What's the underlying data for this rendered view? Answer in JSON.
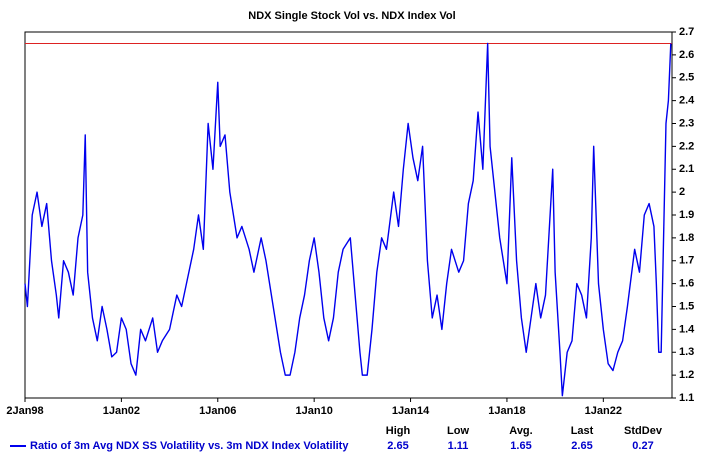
{
  "chart_data": {
    "type": "line",
    "title": "NDX Single Stock Vol vs. NDX Index Vol",
    "x": [
      1998.0,
      1998.1,
      1998.3,
      1998.5,
      1998.7,
      1998.9,
      1999.1,
      1999.3,
      1999.4,
      1999.6,
      1999.8,
      2000.0,
      2000.2,
      2000.4,
      2000.5,
      2000.6,
      2000.8,
      2001.0,
      2001.2,
      2001.4,
      2001.6,
      2001.8,
      2002.0,
      2002.2,
      2002.4,
      2002.6,
      2002.8,
      2003.0,
      2003.3,
      2003.5,
      2003.7,
      2004.0,
      2004.3,
      2004.5,
      2004.7,
      2005.0,
      2005.2,
      2005.4,
      2005.6,
      2005.8,
      2006.0,
      2006.1,
      2006.3,
      2006.5,
      2006.8,
      2007.0,
      2007.3,
      2007.5,
      2007.8,
      2008.0,
      2008.3,
      2008.6,
      2008.8,
      2009.0,
      2009.2,
      2009.4,
      2009.6,
      2009.8,
      2010.0,
      2010.2,
      2010.4,
      2010.6,
      2010.8,
      2011.0,
      2011.2,
      2011.5,
      2011.7,
      2011.9,
      2012.0,
      2012.2,
      2012.4,
      2012.6,
      2012.8,
      2013.0,
      2013.3,
      2013.5,
      2013.7,
      2013.9,
      2014.1,
      2014.3,
      2014.5,
      2014.7,
      2014.9,
      2015.1,
      2015.3,
      2015.5,
      2015.7,
      2016.0,
      2016.2,
      2016.4,
      2016.6,
      2016.8,
      2017.0,
      2017.2,
      2017.3,
      2017.5,
      2017.7,
      2018.0,
      2018.2,
      2018.4,
      2018.6,
      2018.8,
      2019.0,
      2019.2,
      2019.4,
      2019.6,
      2019.9,
      2020.0,
      2020.2,
      2020.3,
      2020.5,
      2020.7,
      2020.9,
      2021.1,
      2021.3,
      2021.5,
      2021.6,
      2021.8,
      2022.0,
      2022.2,
      2022.4,
      2022.6,
      2022.8,
      2023.0,
      2023.3,
      2023.5,
      2023.7,
      2023.9,
      2024.1,
      2024.2,
      2024.3,
      2024.4,
      2024.5,
      2024.6,
      2024.7,
      2024.8
    ],
    "series": [
      {
        "name": "Ratio of 3m Avg NDX SS Volatility vs. 3m NDX Index Volatility",
        "color": "#0000ee",
        "values": [
          1.6,
          1.5,
          1.9,
          2.0,
          1.85,
          1.95,
          1.7,
          1.55,
          1.45,
          1.7,
          1.65,
          1.55,
          1.8,
          1.9,
          2.25,
          1.65,
          1.45,
          1.35,
          1.5,
          1.4,
          1.28,
          1.3,
          1.45,
          1.4,
          1.25,
          1.2,
          1.4,
          1.35,
          1.45,
          1.3,
          1.35,
          1.4,
          1.55,
          1.5,
          1.6,
          1.75,
          1.9,
          1.75,
          2.3,
          2.1,
          2.48,
          2.2,
          2.25,
          2.0,
          1.8,
          1.85,
          1.75,
          1.65,
          1.8,
          1.7,
          1.5,
          1.3,
          1.2,
          1.2,
          1.3,
          1.45,
          1.55,
          1.7,
          1.8,
          1.65,
          1.45,
          1.35,
          1.45,
          1.65,
          1.75,
          1.8,
          1.55,
          1.3,
          1.2,
          1.2,
          1.4,
          1.65,
          1.8,
          1.75,
          2.0,
          1.85,
          2.1,
          2.3,
          2.15,
          2.05,
          2.2,
          1.7,
          1.45,
          1.55,
          1.4,
          1.6,
          1.75,
          1.65,
          1.7,
          1.95,
          2.05,
          2.35,
          2.1,
          2.65,
          2.2,
          2.0,
          1.8,
          1.6,
          2.15,
          1.7,
          1.45,
          1.3,
          1.45,
          1.6,
          1.45,
          1.55,
          2.1,
          1.65,
          1.3,
          1.11,
          1.3,
          1.35,
          1.6,
          1.55,
          1.45,
          1.8,
          2.2,
          1.6,
          1.4,
          1.25,
          1.22,
          1.3,
          1.35,
          1.5,
          1.75,
          1.65,
          1.9,
          1.95,
          1.85,
          1.6,
          1.3,
          1.3,
          1.8,
          2.3,
          2.4,
          2.65
        ]
      }
    ],
    "xlim": [
      1998.0,
      2024.85
    ],
    "xticks": [
      {
        "value": 1998.0,
        "label": "2Jan98"
      },
      {
        "value": 2002.0,
        "label": "1Jan02"
      },
      {
        "value": 2006.0,
        "label": "1Jan06"
      },
      {
        "value": 2010.0,
        "label": "1Jan10"
      },
      {
        "value": 2014.0,
        "label": "1Jan14"
      },
      {
        "value": 2018.0,
        "label": "1Jan18"
      },
      {
        "value": 2022.0,
        "label": "1Jan22"
      }
    ],
    "ylim": [
      1.1,
      2.7
    ],
    "yticks": [
      1.1,
      1.2,
      1.3,
      1.4,
      1.5,
      1.6,
      1.7,
      1.8,
      1.9,
      2,
      2.1,
      2.2,
      2.3,
      2.4,
      2.5,
      2.6,
      2.7
    ],
    "reference_color": "#dd2222",
    "stats": [
      {
        "label": "High",
        "value": 2.65
      },
      {
        "label": "Low",
        "value": 1.11
      },
      {
        "label": "Avg.",
        "value": 1.65
      },
      {
        "label": "Last",
        "value": 2.65
      },
      {
        "label": "StdDev",
        "value": 0.27
      }
    ]
  }
}
